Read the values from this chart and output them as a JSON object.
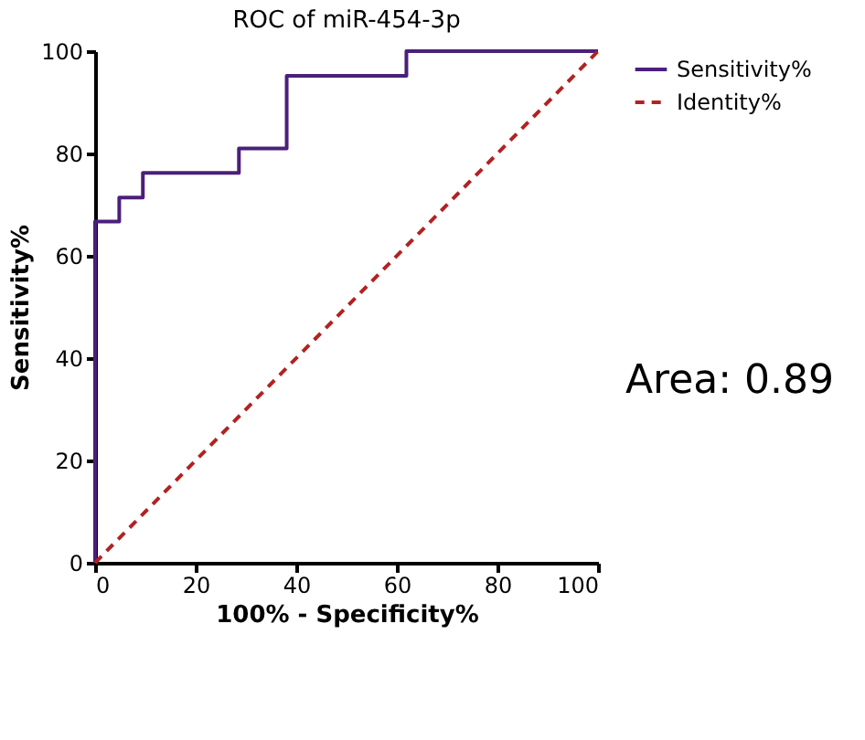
{
  "chart_data": {
    "type": "line",
    "title": "ROC of miR-454-3p",
    "xlabel": "100% - Specificity%",
    "ylabel": "Sensitivity%",
    "series": [
      {
        "name": "Sensitivity%",
        "color": "#4b1f7a",
        "line_style": "solid",
        "x": [
          0,
          0,
          4.8,
          4.8,
          9.5,
          9.5,
          28.6,
          28.6,
          38.1,
          38.1,
          61.9,
          61.9,
          100
        ],
        "values": [
          0,
          66.7,
          66.7,
          71.4,
          71.4,
          76.2,
          76.2,
          81,
          81,
          95.2,
          95.2,
          100,
          100
        ]
      },
      {
        "name": "Identity%",
        "color": "#b22222",
        "line_style": "dashed",
        "x": [
          0,
          100
        ],
        "values": [
          0,
          100
        ]
      }
    ],
    "xlim": [
      0,
      100
    ],
    "ylim": [
      0,
      100
    ],
    "xticks": [
      0,
      20,
      40,
      60,
      80,
      100
    ],
    "yticks": [
      0,
      20,
      40,
      60,
      80,
      100
    ],
    "grid": false,
    "legend": "right",
    "marker": "none",
    "annotations": [
      "Area: 0.89"
    ]
  }
}
